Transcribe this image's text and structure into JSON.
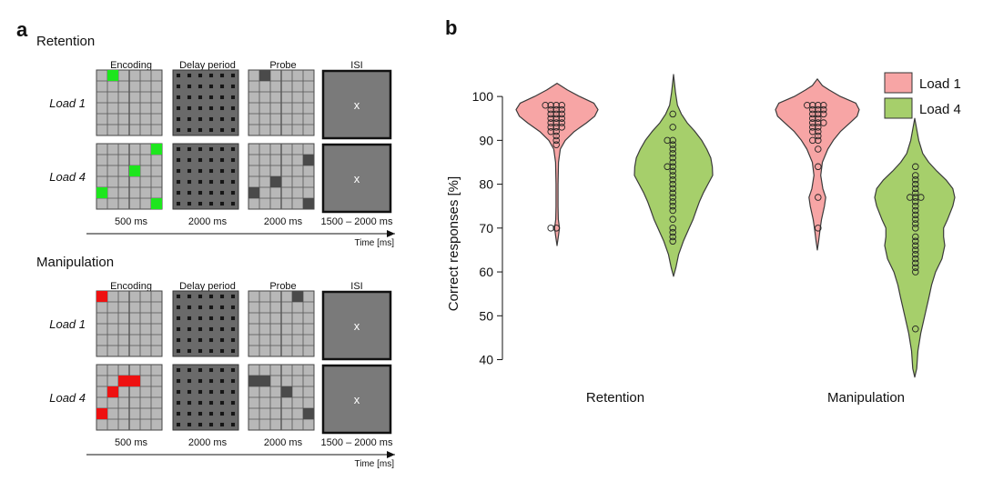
{
  "panel_a": {
    "label": "a",
    "sections": [
      {
        "title": "Retention",
        "columns": [
          "Encoding",
          "Delay period",
          "Probe",
          "ISI"
        ],
        "rows": [
          {
            "label": "Load 1",
            "encoding_cells": [
              [
                0,
                1
              ]
            ],
            "probe_cells": [
              [
                0,
                1
              ]
            ]
          },
          {
            "label": "Load 4",
            "encoding_cells": [
              [
                0,
                5
              ],
              [
                2,
                3
              ],
              [
                4,
                0
              ],
              [
                5,
                5
              ]
            ],
            "probe_cells": [
              [
                1,
                5
              ],
              [
                3,
                2
              ],
              [
                4,
                0
              ],
              [
                5,
                5
              ]
            ]
          }
        ],
        "encoding_color": "#1ee61e",
        "durations": [
          "500 ms",
          "2000 ms",
          "2000 ms",
          "1500 – 2000 ms"
        ],
        "time_label": "Time [ms]",
        "isi_symbol": "x"
      },
      {
        "title": "Manipulation",
        "columns": [
          "Encoding",
          "Delay period",
          "Probe",
          "ISI"
        ],
        "rows": [
          {
            "label": "Load 1",
            "encoding_cells": [
              [
                0,
                0
              ]
            ],
            "probe_cells": [
              [
                0,
                4
              ]
            ]
          },
          {
            "label": "Load 4",
            "encoding_cells": [
              [
                1,
                2
              ],
              [
                1,
                3
              ],
              [
                2,
                1
              ],
              [
                4,
                0
              ]
            ],
            "probe_cells": [
              [
                1,
                0
              ],
              [
                1,
                1
              ],
              [
                2,
                3
              ],
              [
                4,
                5
              ]
            ]
          }
        ],
        "encoding_color": "#ee1111",
        "durations": [
          "500 ms",
          "2000 ms",
          "2000 ms",
          "1500 – 2000 ms"
        ],
        "time_label": "Time [ms]",
        "isi_symbol": "x"
      }
    ]
  },
  "chart_data": {
    "label": "b",
    "type": "violin",
    "categories": [
      "Retention",
      "Manipulation"
    ],
    "ylabel": "Correct responses [%]",
    "ylim": [
      37,
      105
    ],
    "yticks": [
      40,
      50,
      60,
      70,
      80,
      90,
      100
    ],
    "legend": {
      "placement": "top-right",
      "entries": [
        "Load 1",
        "Load 4"
      ]
    },
    "series": [
      {
        "name": "Load 1",
        "color": "#f7a5a5",
        "violins": [
          {
            "category": "Retention",
            "range": [
              66,
              103
            ],
            "profile": [
              [
                66,
                0
              ],
              [
                68,
                0.03
              ],
              [
                70,
                0.06
              ],
              [
                72,
                0.03
              ],
              [
                75,
                0.025
              ],
              [
                80,
                0.025
              ],
              [
                85,
                0.035
              ],
              [
                88,
                0.08
              ],
              [
                90,
                0.2
              ],
              [
                92,
                0.42
              ],
              [
                94,
                0.72
              ],
              [
                95.5,
                0.92
              ],
              [
                97,
                1.0
              ],
              [
                98.5,
                0.9
              ],
              [
                100,
                0.55
              ],
              [
                101.5,
                0.25
              ],
              [
                103,
                0
              ]
            ],
            "points": [
              98,
              98,
              98,
              98,
              97,
              97,
              97,
              96,
              96,
              96,
              95,
              95,
              95,
              94,
              94,
              94,
              93,
              93,
              93,
              92,
              92,
              91,
              90,
              89,
              70,
              70
            ]
          },
          {
            "category": "Manipulation",
            "range": [
              65,
              104
            ],
            "profile": [
              [
                65,
                0
              ],
              [
                67,
                0.03
              ],
              [
                70,
                0.07
              ],
              [
                72,
                0.1
              ],
              [
                75,
                0.17
              ],
              [
                77,
                0.2
              ],
              [
                79,
                0.13
              ],
              [
                82,
                0.08
              ],
              [
                85,
                0.12
              ],
              [
                88,
                0.25
              ],
              [
                90,
                0.38
              ],
              [
                92,
                0.55
              ],
              [
                94,
                0.78
              ],
              [
                95.5,
                0.95
              ],
              [
                97,
                1.0
              ],
              [
                98.5,
                0.92
              ],
              [
                100,
                0.55
              ],
              [
                101.5,
                0.28
              ],
              [
                102.5,
                0.12
              ],
              [
                104,
                0
              ]
            ],
            "points": [
              98,
              98,
              98,
              98,
              97,
              97,
              97,
              96,
              96,
              96,
              95,
              95,
              94,
              94,
              94,
              93,
              93,
              92,
              92,
              91,
              90,
              90,
              88,
              84,
              77,
              70
            ]
          }
        ]
      },
      {
        "name": "Load 4",
        "color": "#a6cf6b",
        "violins": [
          {
            "category": "Retention",
            "range": [
              59,
              105
            ],
            "profile": [
              [
                59,
                0
              ],
              [
                61,
                0.06
              ],
              [
                64,
                0.13
              ],
              [
                67,
                0.25
              ],
              [
                70,
                0.4
              ],
              [
                72,
                0.5
              ],
              [
                74,
                0.58
              ],
              [
                76,
                0.66
              ],
              [
                78,
                0.76
              ],
              [
                80,
                0.88
              ],
              [
                82,
                1.0
              ],
              [
                84,
                0.99
              ],
              [
                86,
                0.95
              ],
              [
                88,
                0.85
              ],
              [
                90,
                0.72
              ],
              [
                92,
                0.55
              ],
              [
                94,
                0.35
              ],
              [
                96,
                0.2
              ],
              [
                98,
                0.1
              ],
              [
                101,
                0.05
              ],
              [
                105,
                0
              ]
            ],
            "points": [
              96,
              93,
              90,
              90,
              89,
              88,
              87,
              86,
              85,
              84,
              84,
              83,
              82,
              81,
              80,
              79,
              78,
              77,
              76,
              75,
              74,
              72,
              70,
              69,
              68,
              67
            ]
          },
          {
            "category": "Manipulation",
            "range": [
              36,
              95
            ],
            "profile": [
              [
                36,
                0
              ],
              [
                38,
                0.05
              ],
              [
                42,
                0.08
              ],
              [
                46,
                0.15
              ],
              [
                50,
                0.25
              ],
              [
                54,
                0.35
              ],
              [
                57,
                0.42
              ],
              [
                60,
                0.52
              ],
              [
                63,
                0.68
              ],
              [
                66,
                0.75
              ],
              [
                68,
                0.72
              ],
              [
                70,
                0.72
              ],
              [
                72,
                0.82
              ],
              [
                75,
                0.95
              ],
              [
                77,
                1.0
              ],
              [
                79,
                0.95
              ],
              [
                81,
                0.78
              ],
              [
                83,
                0.55
              ],
              [
                85,
                0.35
              ],
              [
                87,
                0.2
              ],
              [
                90,
                0.1
              ],
              [
                95,
                0
              ]
            ],
            "points": [
              84,
              82,
              81,
              80,
              79,
              78,
              77,
              77,
              77,
              76,
              75,
              74,
              73,
              72,
              71,
              70,
              68,
              67,
              66,
              65,
              64,
              63,
              62,
              61,
              60,
              47
            ]
          }
        ]
      }
    ]
  }
}
